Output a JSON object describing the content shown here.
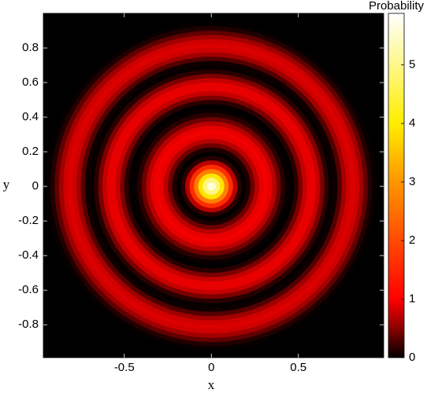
{
  "chart_data": {
    "type": "radial_heatmap",
    "xlabel": "x",
    "ylabel": "y",
    "colorbar_label": "Probability",
    "xlim": [
      -0.965,
      0.99
    ],
    "ylim": [
      -0.99,
      1.0
    ],
    "xticks": [
      -0.5,
      0,
      0.5
    ],
    "yticks": [
      -0.8,
      -0.6,
      -0.4,
      -0.2,
      0,
      0.2,
      0.4,
      0.6,
      0.8
    ],
    "zlim": [
      0,
      5.88
    ],
    "zticks": [
      0,
      1,
      2,
      3,
      4,
      5
    ],
    "colormap": [
      {
        "value": 0,
        "color": "#000000"
      },
      {
        "value": 0.5,
        "color": "#8a0000"
      },
      {
        "value": 1,
        "color": "#ff0000"
      },
      {
        "value": 2,
        "color": "#ff4a00"
      },
      {
        "value": 3,
        "color": "#ff9500"
      },
      {
        "value": 4,
        "color": "#ffee00"
      },
      {
        "value": 5.88,
        "color": "#ffffff"
      }
    ],
    "r": [
      0.025,
      0.05,
      0.075,
      0.1,
      0.125,
      0.15,
      0.175,
      0.2,
      0.225,
      0.25,
      0.275,
      0.3,
      0.325,
      0.35,
      0.375,
      0.4,
      0.425,
      0.45,
      0.475,
      0.5,
      0.525,
      0.55,
      0.575,
      0.6,
      0.625,
      0.65,
      0.675,
      0.7,
      0.725,
      0.75,
      0.775,
      0.8,
      0.825,
      0.85,
      0.875,
      0.9,
      0.925,
      0.95,
      0.975,
      1.0
    ],
    "values": [
      5.6,
      4.9,
      3.9,
      2.7,
      1.6,
      0.7,
      0.15,
      0,
      0.1,
      0.4,
      0.7,
      0.9,
      0.95,
      0.9,
      0.7,
      0.4,
      0.15,
      0.03,
      0,
      0.15,
      0.45,
      0.75,
      0.9,
      0.9,
      0.75,
      0.45,
      0.15,
      0.02,
      0.05,
      0.3,
      0.6,
      0.8,
      0.85,
      0.8,
      0.6,
      0.35,
      0.12,
      0.02,
      0,
      0
    ]
  }
}
